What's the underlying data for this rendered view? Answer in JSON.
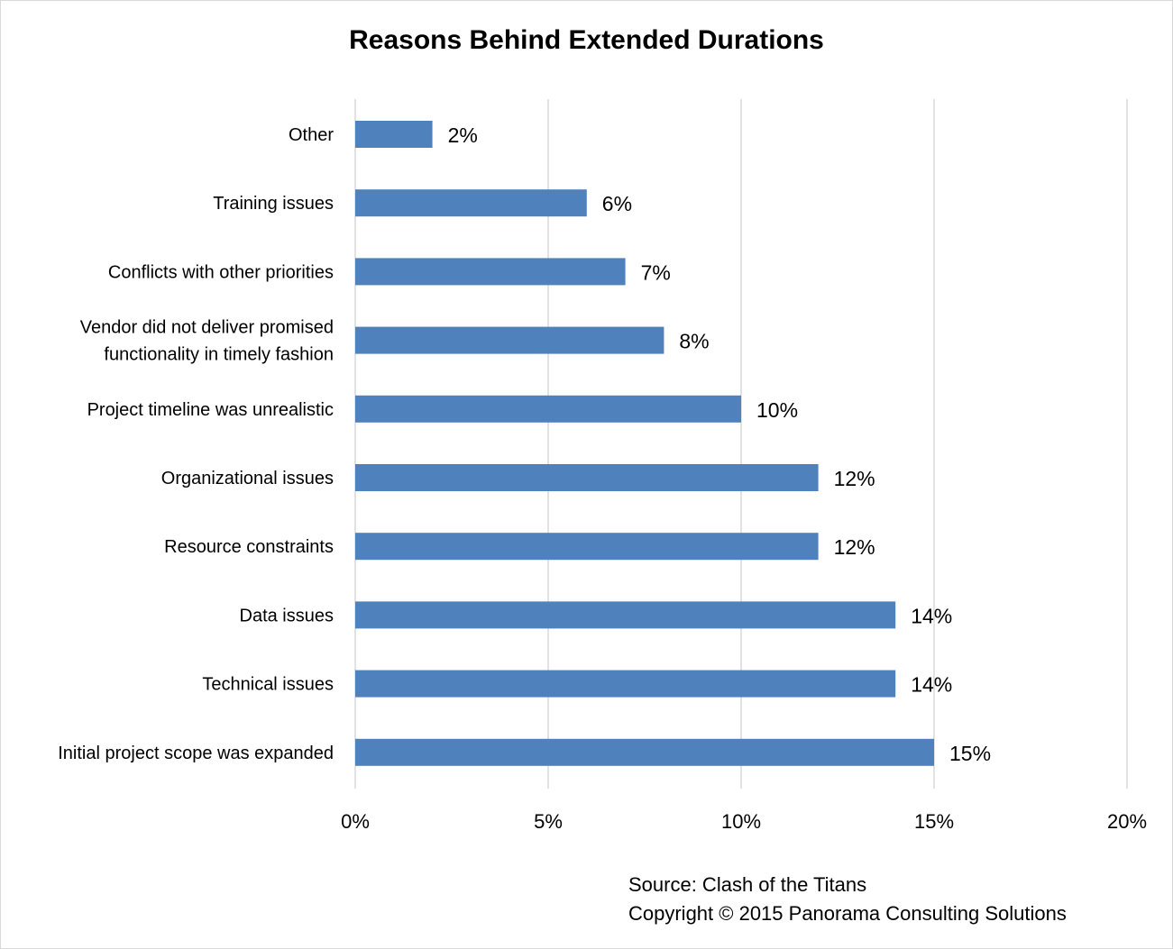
{
  "chart_data": {
    "type": "bar",
    "orientation": "horizontal",
    "title": "Reasons Behind Extended Durations",
    "categories": [
      [
        "Other"
      ],
      [
        "Training issues"
      ],
      [
        "Conflicts with other priorities"
      ],
      [
        "Vendor did not deliver promised",
        "functionality in timely fashion"
      ],
      [
        "Project timeline was unrealistic"
      ],
      [
        "Organizational issues"
      ],
      [
        "Resource constraints"
      ],
      [
        "Data issues"
      ],
      [
        "Technical issues"
      ],
      [
        "Initial project scope was expanded"
      ]
    ],
    "values": [
      2,
      6,
      7,
      8,
      10,
      12,
      12,
      14,
      14,
      15
    ],
    "data_labels": [
      "2%",
      "6%",
      "7%",
      "8%",
      "10%",
      "12%",
      "12%",
      "14%",
      "14%",
      "15%"
    ],
    "xlim": [
      0,
      20
    ],
    "ticks": [
      0,
      5,
      10,
      15,
      20
    ],
    "tick_labels": [
      "0%",
      "5%",
      "10%",
      "15%",
      "20%"
    ],
    "grid": "vertical",
    "bar_color": "#4f81bd",
    "grid_color": "#d9d9d9"
  },
  "footer": {
    "source": "Source: Clash of the Titans",
    "copyright": "Copyright © 2015 Panorama Consulting Solutions"
  }
}
